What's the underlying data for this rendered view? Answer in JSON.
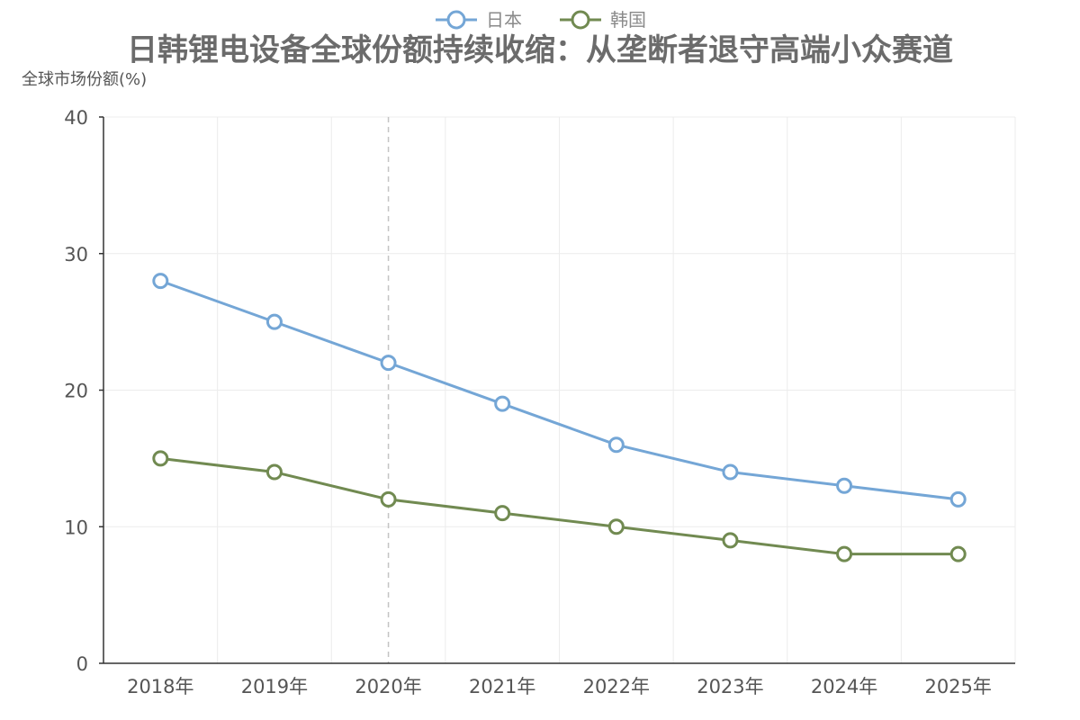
{
  "chart_data": {
    "type": "line",
    "title": "日韩锂电设备全球份额持续收缩：从垄断者退守高端小众赛道",
    "ylabel": "全球市场份额(%)",
    "xlabel": "",
    "categories": [
      "2018年",
      "2019年",
      "2020年",
      "2021年",
      "2022年",
      "2023年",
      "2024年",
      "2025年"
    ],
    "series": [
      {
        "name": "日本",
        "values": [
          28,
          25,
          22,
          19,
          16,
          14,
          13,
          12
        ],
        "color": "#74a6d6"
      },
      {
        "name": "韩国",
        "values": [
          15,
          14,
          12,
          11,
          10,
          9,
          8,
          8
        ],
        "color": "#718a51"
      }
    ],
    "ylim": [
      0,
      40
    ],
    "yticks": [
      0,
      10,
      20,
      30,
      40
    ],
    "grid": true,
    "legend_position": "top-center",
    "highlight_category": "2020年"
  }
}
